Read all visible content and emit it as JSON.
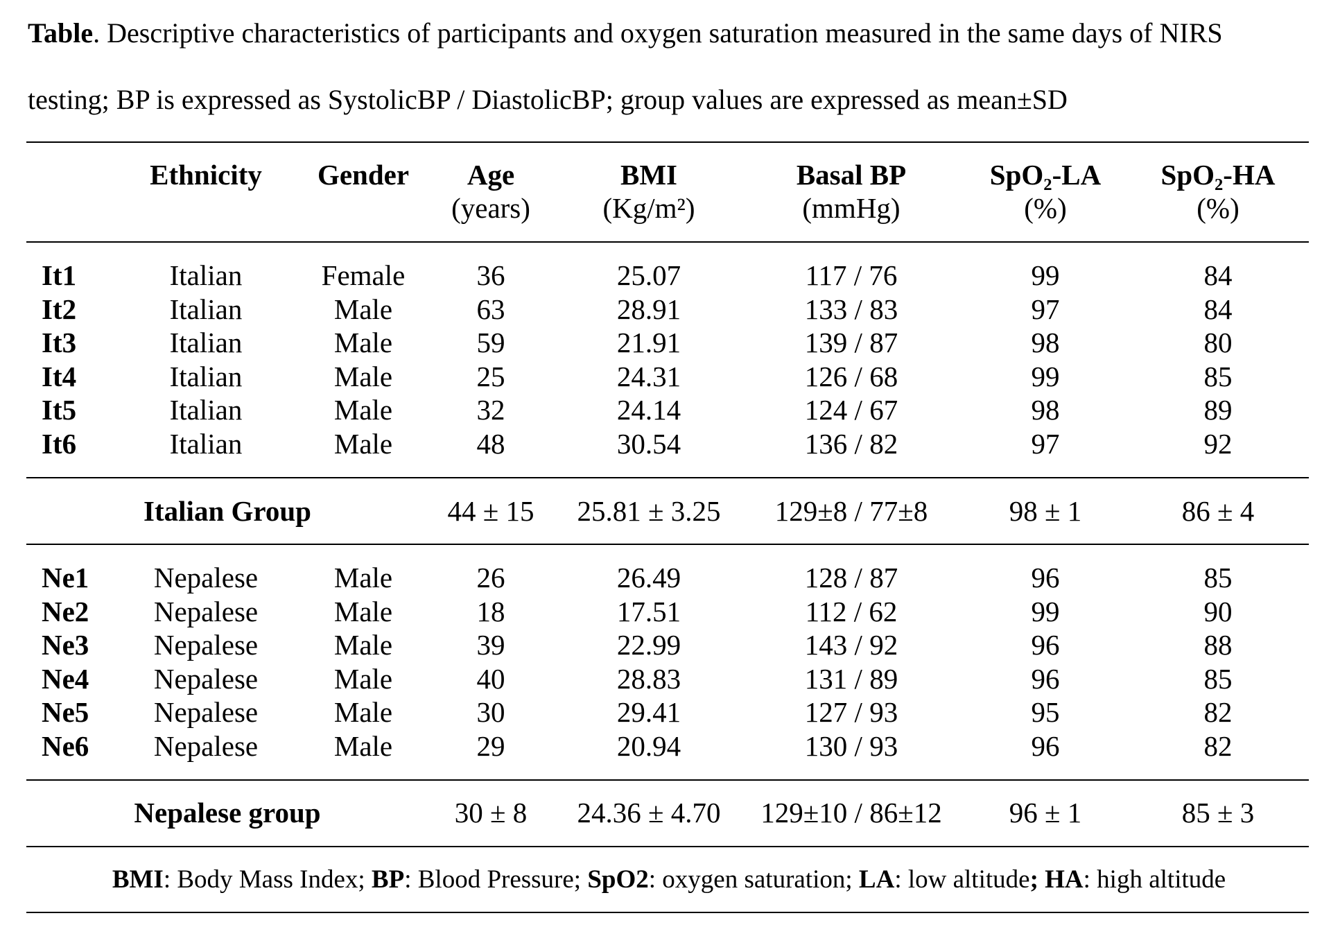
{
  "caption": {
    "label": "Table",
    "text": ". Descriptive characteristics of participants and oxygen saturation measured in the same days of NIRS testing; BP is expressed as SystolicBP / DiastolicBP; group values are expressed as mean±SD"
  },
  "headers": [
    {
      "key": "id",
      "line1": "",
      "line2": ""
    },
    {
      "key": "ethnicity",
      "line1": "Ethnicity",
      "line2": ""
    },
    {
      "key": "gender",
      "line1": "Gender",
      "line2": ""
    },
    {
      "key": "age",
      "line1": "Age",
      "line2": "(years)"
    },
    {
      "key": "bmi",
      "line1": "BMI",
      "line2": "(Kg/m²)"
    },
    {
      "key": "bp",
      "line1": "Basal BP",
      "line2": "(mmHg)"
    },
    {
      "key": "spo2_la",
      "line1": "SpO₂-LA",
      "line2": "(%)"
    },
    {
      "key": "spo2_ha",
      "line1": "SpO₂-HA",
      "line2": "(%)"
    }
  ],
  "italian_rows": [
    {
      "id": "It1",
      "ethnicity": "Italian",
      "gender": "Female",
      "age": "36",
      "bmi": "25.07",
      "bp": "117 / 76",
      "spo2_la": "99",
      "spo2_ha": "84"
    },
    {
      "id": "It2",
      "ethnicity": "Italian",
      "gender": "Male",
      "age": "63",
      "bmi": "28.91",
      "bp": "133 / 83",
      "spo2_la": "97",
      "spo2_ha": "84"
    },
    {
      "id": "It3",
      "ethnicity": "Italian",
      "gender": "Male",
      "age": "59",
      "bmi": "21.91",
      "bp": "139 / 87",
      "spo2_la": "98",
      "spo2_ha": "80"
    },
    {
      "id": "It4",
      "ethnicity": "Italian",
      "gender": "Male",
      "age": "25",
      "bmi": "24.31",
      "bp": "126 / 68",
      "spo2_la": "99",
      "spo2_ha": "85"
    },
    {
      "id": "It5",
      "ethnicity": "Italian",
      "gender": "Male",
      "age": "32",
      "bmi": "24.14",
      "bp": "124 / 67",
      "spo2_la": "98",
      "spo2_ha": "89"
    },
    {
      "id": "It6",
      "ethnicity": "Italian",
      "gender": "Male",
      "age": "48",
      "bmi": "30.54",
      "bp": "136 / 82",
      "spo2_la": "97",
      "spo2_ha": "92"
    }
  ],
  "italian_group": {
    "label": "Italian Group",
    "age": "44 ± 15",
    "bmi": "25.81 ± 3.25",
    "bp": "129±8 / 77±8",
    "spo2_la": "98 ± 1",
    "spo2_ha": "86 ± 4"
  },
  "nepalese_rows": [
    {
      "id": "Ne1",
      "ethnicity": "Nepalese",
      "gender": "Male",
      "age": "26",
      "bmi": "26.49",
      "bp": "128 / 87",
      "spo2_la": "96",
      "spo2_ha": "85"
    },
    {
      "id": "Ne2",
      "ethnicity": "Nepalese",
      "gender": "Male",
      "age": "18",
      "bmi": "17.51",
      "bp": "112 / 62",
      "spo2_la": "99",
      "spo2_ha": "90"
    },
    {
      "id": "Ne3",
      "ethnicity": "Nepalese",
      "gender": "Male",
      "age": "39",
      "bmi": "22.99",
      "bp": "143 / 92",
      "spo2_la": "96",
      "spo2_ha": "88"
    },
    {
      "id": "Ne4",
      "ethnicity": "Nepalese",
      "gender": "Male",
      "age": "40",
      "bmi": "28.83",
      "bp": "131 / 89",
      "spo2_la": "96",
      "spo2_ha": "85"
    },
    {
      "id": "Ne5",
      "ethnicity": "Nepalese",
      "gender": "Male",
      "age": "30",
      "bmi": "29.41",
      "bp": "127 / 93",
      "spo2_la": "95",
      "spo2_ha": "82"
    },
    {
      "id": "Ne6",
      "ethnicity": "Nepalese",
      "gender": "Male",
      "age": "29",
      "bmi": "20.94",
      "bp": "130 / 93",
      "spo2_la": "96",
      "spo2_ha": "82"
    }
  ],
  "nepalese_group": {
    "label": "Nepalese group",
    "age": "30 ± 8",
    "bmi": "24.36 ± 4.70",
    "bp": "129±10 / 86±12",
    "spo2_la": "96 ± 1",
    "spo2_ha": "85 ± 3"
  },
  "footnote": [
    {
      "term": "BMI",
      "def": ": Body Mass Index; "
    },
    {
      "term": "BP",
      "def": ": Blood Pressure; "
    },
    {
      "term": "SpO2",
      "def": ": oxygen saturation; "
    },
    {
      "term": "LA",
      "def": ": low altitude"
    },
    {
      "term": "; HA",
      "def": ": high altitude"
    }
  ]
}
